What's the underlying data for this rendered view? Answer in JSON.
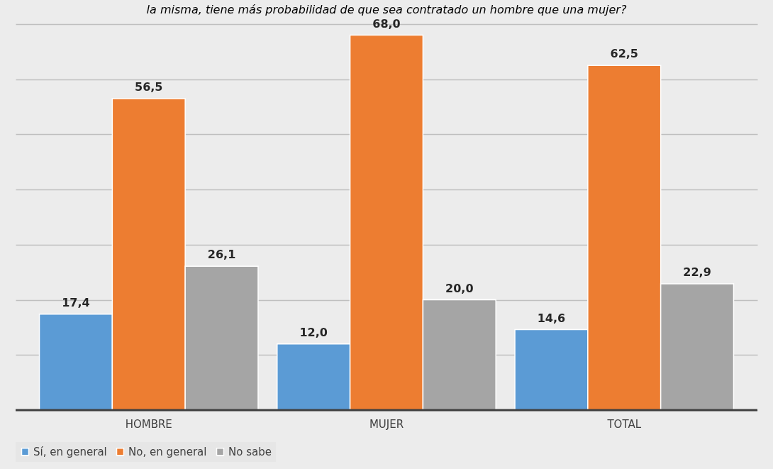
{
  "chart_data": {
    "type": "bar",
    "title": "la misma, tiene más probabilidad de que sea contratado un hombre que una mujer?",
    "categories": [
      "HOMBRE",
      "MUJER",
      "TOTAL"
    ],
    "series": [
      {
        "name": "Sí, en general",
        "color": "#5b9bd5",
        "values": [
          17.4,
          12.0,
          14.6
        ],
        "value_labels": [
          "17,4",
          "12,0",
          "14,6"
        ]
      },
      {
        "name": "No, en general",
        "color": "#ed7d31",
        "values": [
          56.5,
          68.0,
          62.5
        ],
        "value_labels": [
          "56,5",
          "68,0",
          "62,5"
        ]
      },
      {
        "name": "No sabe",
        "color": "#a5a5a5",
        "values": [
          26.1,
          20.0,
          22.9
        ],
        "value_labels": [
          "26,1",
          "20,0",
          "22,9"
        ]
      }
    ],
    "grid": "y",
    "legend": "bottom",
    "tick_labels": "x"
  }
}
